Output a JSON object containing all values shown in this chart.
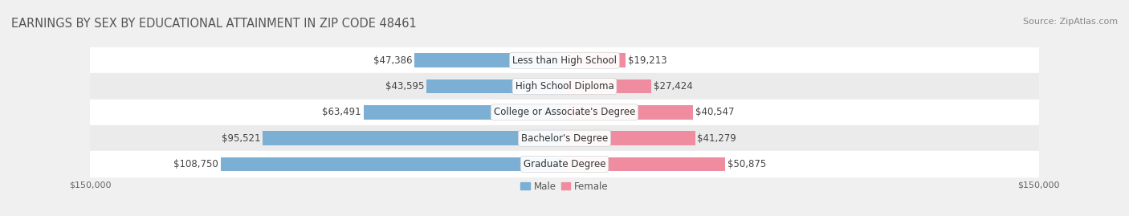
{
  "title": "EARNINGS BY SEX BY EDUCATIONAL ATTAINMENT IN ZIP CODE 48461",
  "source": "Source: ZipAtlas.com",
  "categories": [
    "Less than High School",
    "High School Diploma",
    "College or Associate's Degree",
    "Bachelor's Degree",
    "Graduate Degree"
  ],
  "male_values": [
    47386,
    43595,
    63491,
    95521,
    108750
  ],
  "female_values": [
    19213,
    27424,
    40547,
    41279,
    50875
  ],
  "male_color": "#7bafd4",
  "female_color": "#f08ca0",
  "max_val": 150000,
  "background_color": "#f0f0f0",
  "row_bg_colors": [
    "#f8f8f8",
    "#f0f0f0"
  ],
  "bar_height": 0.55,
  "title_fontsize": 10.5,
  "label_fontsize": 8.5,
  "tick_fontsize": 8,
  "source_fontsize": 8
}
